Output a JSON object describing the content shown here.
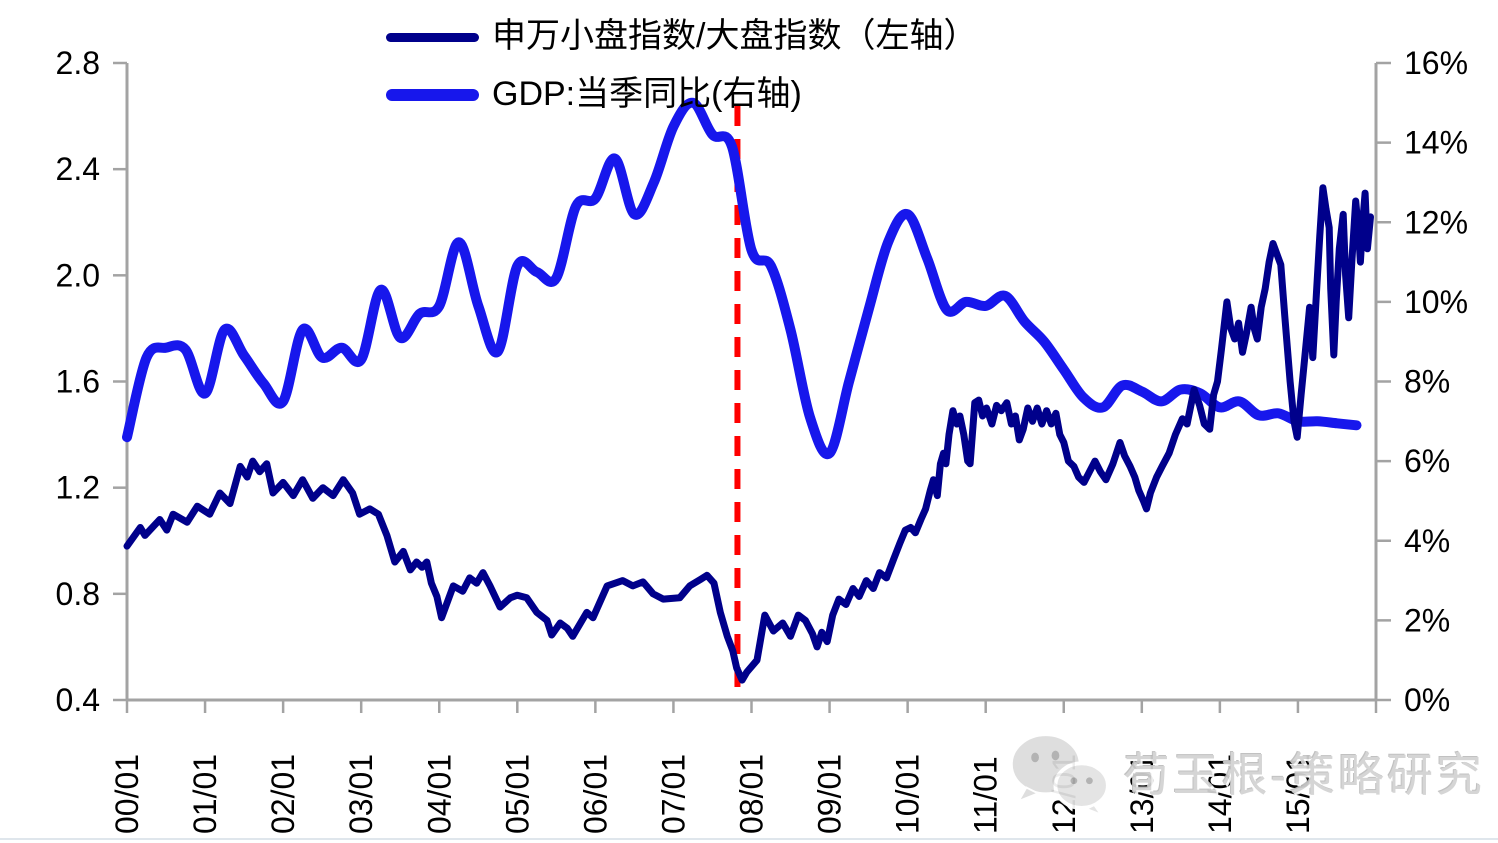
{
  "watermark": {
    "text": "荀玉根-策略研究"
  },
  "chart_data": {
    "type": "line",
    "title": "",
    "grid": false,
    "legend_position": "top-left-inside",
    "left_axis": {
      "min": 0.4,
      "max": 2.8,
      "tick_labels": [
        "2.8",
        "2.4",
        "2.0",
        "1.6",
        "1.2",
        "0.8",
        "0.4"
      ]
    },
    "right_axis": {
      "min": 0,
      "max": 16,
      "tick_labels": [
        "16%",
        "14%",
        "12%",
        "10%",
        "8%",
        "6%",
        "4%",
        "2%",
        "0%"
      ]
    },
    "x_axis": {
      "min_year": 2000,
      "max_year": 2016,
      "tick_labels": [
        "00/01",
        "01/01",
        "02/01",
        "03/01",
        "04/01",
        "05/01",
        "06/01",
        "07/01",
        "08/01",
        "09/01",
        "10/01",
        "11/01",
        "12/01",
        "13/01",
        "14/01",
        "15/01"
      ]
    },
    "annotation_vline": {
      "x_year": 2007.82,
      "color": "#FF0000",
      "dash": [
        20,
        13
      ],
      "width": 6
    },
    "colors": {
      "ratio_line": "#00008B",
      "gdp_line": "#1717EC",
      "axis": "#A3A3A3",
      "label": "#000000",
      "watermark": "#D2D2D2"
    },
    "series": [
      {
        "name": "申万小盘指数/大盘指数（左轴）",
        "axis": "left",
        "color": "#00008B",
        "width": 7,
        "smooth": false,
        "points": [
          [
            2000.0,
            0.98
          ],
          [
            2000.17,
            1.05
          ],
          [
            2000.23,
            1.02
          ],
          [
            2000.42,
            1.08
          ],
          [
            2000.51,
            1.04
          ],
          [
            2000.59,
            1.1
          ],
          [
            2000.77,
            1.07
          ],
          [
            2000.9,
            1.13
          ],
          [
            2001.06,
            1.1
          ],
          [
            2001.19,
            1.18
          ],
          [
            2001.32,
            1.14
          ],
          [
            2001.45,
            1.28
          ],
          [
            2001.54,
            1.24
          ],
          [
            2001.61,
            1.3
          ],
          [
            2001.7,
            1.26
          ],
          [
            2001.79,
            1.29
          ],
          [
            2001.87,
            1.18
          ],
          [
            2002.0,
            1.22
          ],
          [
            2002.13,
            1.17
          ],
          [
            2002.25,
            1.23
          ],
          [
            2002.38,
            1.16
          ],
          [
            2002.51,
            1.2
          ],
          [
            2002.64,
            1.17
          ],
          [
            2002.77,
            1.23
          ],
          [
            2002.89,
            1.18
          ],
          [
            2002.98,
            1.1
          ],
          [
            2003.11,
            1.12
          ],
          [
            2003.22,
            1.1
          ],
          [
            2003.33,
            1.02
          ],
          [
            2003.43,
            0.92
          ],
          [
            2003.54,
            0.96
          ],
          [
            2003.63,
            0.89
          ],
          [
            2003.71,
            0.92
          ],
          [
            2003.78,
            0.9
          ],
          [
            2003.84,
            0.92
          ],
          [
            2003.9,
            0.84
          ],
          [
            2003.97,
            0.79
          ],
          [
            2004.03,
            0.71
          ],
          [
            2004.18,
            0.83
          ],
          [
            2004.3,
            0.81
          ],
          [
            2004.39,
            0.86
          ],
          [
            2004.48,
            0.84
          ],
          [
            2004.56,
            0.88
          ],
          [
            2004.65,
            0.83
          ],
          [
            2004.78,
            0.75
          ],
          [
            2004.91,
            0.785
          ],
          [
            2005.0,
            0.795
          ],
          [
            2005.12,
            0.785
          ],
          [
            2005.25,
            0.73
          ],
          [
            2005.38,
            0.7
          ],
          [
            2005.44,
            0.645
          ],
          [
            2005.55,
            0.69
          ],
          [
            2005.64,
            0.67
          ],
          [
            2005.71,
            0.64
          ],
          [
            2005.89,
            0.73
          ],
          [
            2005.97,
            0.71
          ],
          [
            2006.15,
            0.83
          ],
          [
            2006.35,
            0.85
          ],
          [
            2006.48,
            0.83
          ],
          [
            2006.61,
            0.845
          ],
          [
            2006.74,
            0.8
          ],
          [
            2006.87,
            0.78
          ],
          [
            2007.08,
            0.785
          ],
          [
            2007.21,
            0.83
          ],
          [
            2007.35,
            0.855
          ],
          [
            2007.43,
            0.87
          ],
          [
            2007.52,
            0.84
          ],
          [
            2007.6,
            0.73
          ],
          [
            2007.69,
            0.64
          ],
          [
            2007.76,
            0.585
          ],
          [
            2007.81,
            0.52
          ],
          [
            2007.88,
            0.475
          ],
          [
            2007.94,
            0.505
          ],
          [
            2008.07,
            0.55
          ],
          [
            2008.17,
            0.72
          ],
          [
            2008.28,
            0.66
          ],
          [
            2008.4,
            0.69
          ],
          [
            2008.5,
            0.64
          ],
          [
            2008.6,
            0.72
          ],
          [
            2008.69,
            0.7
          ],
          [
            2008.78,
            0.65
          ],
          [
            2008.84,
            0.6
          ],
          [
            2008.9,
            0.655
          ],
          [
            2008.97,
            0.62
          ],
          [
            2009.04,
            0.72
          ],
          [
            2009.12,
            0.78
          ],
          [
            2009.21,
            0.76
          ],
          [
            2009.3,
            0.82
          ],
          [
            2009.38,
            0.79
          ],
          [
            2009.47,
            0.85
          ],
          [
            2009.56,
            0.82
          ],
          [
            2009.64,
            0.88
          ],
          [
            2009.73,
            0.86
          ],
          [
            2009.82,
            0.93
          ],
          [
            2009.9,
            0.99
          ],
          [
            2009.97,
            1.04
          ],
          [
            2010.04,
            1.05
          ],
          [
            2010.1,
            1.03
          ],
          [
            2010.17,
            1.08
          ],
          [
            2010.23,
            1.12
          ],
          [
            2010.29,
            1.19
          ],
          [
            2010.33,
            1.23
          ],
          [
            2010.38,
            1.17
          ],
          [
            2010.42,
            1.29
          ],
          [
            2010.46,
            1.33
          ],
          [
            2010.49,
            1.29
          ],
          [
            2010.53,
            1.4
          ],
          [
            2010.58,
            1.49
          ],
          [
            2010.63,
            1.44
          ],
          [
            2010.67,
            1.47
          ],
          [
            2010.72,
            1.4
          ],
          [
            2010.77,
            1.3
          ],
          [
            2010.8,
            1.29
          ],
          [
            2010.86,
            1.52
          ],
          [
            2010.91,
            1.53
          ],
          [
            2010.96,
            1.47
          ],
          [
            2011.01,
            1.5
          ],
          [
            2011.08,
            1.44
          ],
          [
            2011.14,
            1.51
          ],
          [
            2011.2,
            1.49
          ],
          [
            2011.27,
            1.52
          ],
          [
            2011.33,
            1.44
          ],
          [
            2011.38,
            1.47
          ],
          [
            2011.43,
            1.38
          ],
          [
            2011.48,
            1.42
          ],
          [
            2011.54,
            1.5
          ],
          [
            2011.6,
            1.45
          ],
          [
            2011.66,
            1.5
          ],
          [
            2011.72,
            1.44
          ],
          [
            2011.78,
            1.49
          ],
          [
            2011.84,
            1.44
          ],
          [
            2011.9,
            1.48
          ],
          [
            2011.95,
            1.4
          ],
          [
            2012.0,
            1.37
          ],
          [
            2012.06,
            1.3
          ],
          [
            2012.13,
            1.28
          ],
          [
            2012.19,
            1.24
          ],
          [
            2012.26,
            1.22
          ],
          [
            2012.33,
            1.26
          ],
          [
            2012.4,
            1.3
          ],
          [
            2012.47,
            1.26
          ],
          [
            2012.54,
            1.23
          ],
          [
            2012.63,
            1.29
          ],
          [
            2012.72,
            1.37
          ],
          [
            2012.78,
            1.32
          ],
          [
            2012.85,
            1.28
          ],
          [
            2012.91,
            1.24
          ],
          [
            2012.96,
            1.19
          ],
          [
            2013.02,
            1.15
          ],
          [
            2013.06,
            1.12
          ],
          [
            2013.11,
            1.18
          ],
          [
            2013.19,
            1.24
          ],
          [
            2013.26,
            1.28
          ],
          [
            2013.35,
            1.33
          ],
          [
            2013.43,
            1.4
          ],
          [
            2013.52,
            1.46
          ],
          [
            2013.58,
            1.44
          ],
          [
            2013.67,
            1.57
          ],
          [
            2013.74,
            1.51
          ],
          [
            2013.8,
            1.44
          ],
          [
            2013.87,
            1.42
          ],
          [
            2013.92,
            1.55
          ],
          [
            2013.97,
            1.6
          ],
          [
            2014.02,
            1.72
          ],
          [
            2014.09,
            1.9
          ],
          [
            2014.14,
            1.8
          ],
          [
            2014.19,
            1.76
          ],
          [
            2014.24,
            1.82
          ],
          [
            2014.29,
            1.71
          ],
          [
            2014.34,
            1.78
          ],
          [
            2014.4,
            1.88
          ],
          [
            2014.44,
            1.8
          ],
          [
            2014.48,
            1.76
          ],
          [
            2014.53,
            1.88
          ],
          [
            2014.58,
            1.95
          ],
          [
            2014.63,
            2.05
          ],
          [
            2014.68,
            2.12
          ],
          [
            2014.73,
            2.08
          ],
          [
            2014.78,
            2.04
          ],
          [
            2014.83,
            1.85
          ],
          [
            2014.9,
            1.6
          ],
          [
            2014.95,
            1.45
          ],
          [
            2014.99,
            1.39
          ],
          [
            2015.04,
            1.55
          ],
          [
            2015.09,
            1.7
          ],
          [
            2015.13,
            1.82
          ],
          [
            2015.15,
            1.88
          ],
          [
            2015.19,
            1.69
          ],
          [
            2015.24,
            1.95
          ],
          [
            2015.28,
            2.15
          ],
          [
            2015.32,
            2.33
          ],
          [
            2015.36,
            2.25
          ],
          [
            2015.4,
            2.18
          ],
          [
            2015.42,
            1.95
          ],
          [
            2015.46,
            1.7
          ],
          [
            2015.49,
            1.9
          ],
          [
            2015.53,
            2.1
          ],
          [
            2015.58,
            2.23
          ],
          [
            2015.61,
            2.0
          ],
          [
            2015.65,
            1.84
          ],
          [
            2015.69,
            2.05
          ],
          [
            2015.74,
            2.28
          ],
          [
            2015.78,
            2.15
          ],
          [
            2015.8,
            2.05
          ],
          [
            2015.83,
            2.2
          ],
          [
            2015.86,
            2.31
          ],
          [
            2015.89,
            2.1
          ],
          [
            2015.93,
            2.22
          ]
        ]
      },
      {
        "name": "GDP:当季同比(右轴)",
        "axis": "right",
        "color": "#1717EC",
        "width": 10,
        "smooth": true,
        "points": [
          [
            2000.0,
            6.6
          ],
          [
            2000.25,
            8.6
          ],
          [
            2000.5,
            8.85
          ],
          [
            2000.75,
            8.8
          ],
          [
            2001.0,
            7.7
          ],
          [
            2001.25,
            9.3
          ],
          [
            2001.5,
            8.65
          ],
          [
            2001.75,
            7.95
          ],
          [
            2002.0,
            7.5
          ],
          [
            2002.25,
            9.3
          ],
          [
            2002.5,
            8.6
          ],
          [
            2002.75,
            8.85
          ],
          [
            2003.0,
            8.55
          ],
          [
            2003.25,
            10.3
          ],
          [
            2003.5,
            9.1
          ],
          [
            2003.75,
            9.7
          ],
          [
            2004.0,
            9.9
          ],
          [
            2004.25,
            11.5
          ],
          [
            2004.5,
            9.9
          ],
          [
            2004.75,
            8.75
          ],
          [
            2005.0,
            10.9
          ],
          [
            2005.25,
            10.75
          ],
          [
            2005.5,
            10.6
          ],
          [
            2005.75,
            12.4
          ],
          [
            2006.0,
            12.6
          ],
          [
            2006.25,
            13.6
          ],
          [
            2006.5,
            12.2
          ],
          [
            2006.75,
            13.0
          ],
          [
            2007.0,
            14.4
          ],
          [
            2007.25,
            15.0
          ],
          [
            2007.5,
            14.2
          ],
          [
            2007.75,
            13.9
          ],
          [
            2008.0,
            11.3
          ],
          [
            2008.25,
            10.9
          ],
          [
            2008.5,
            9.3
          ],
          [
            2008.75,
            7.1
          ],
          [
            2009.0,
            6.2
          ],
          [
            2009.25,
            8.0
          ],
          [
            2009.5,
            9.8
          ],
          [
            2009.75,
            11.5
          ],
          [
            2010.0,
            12.2
          ],
          [
            2010.25,
            11.1
          ],
          [
            2010.5,
            9.8
          ],
          [
            2010.75,
            10.0
          ],
          [
            2011.0,
            9.9
          ],
          [
            2011.25,
            10.15
          ],
          [
            2011.5,
            9.5
          ],
          [
            2011.75,
            9.0
          ],
          [
            2012.0,
            8.3
          ],
          [
            2012.25,
            7.6
          ],
          [
            2012.5,
            7.35
          ],
          [
            2012.75,
            7.9
          ],
          [
            2013.0,
            7.75
          ],
          [
            2013.25,
            7.5
          ],
          [
            2013.5,
            7.8
          ],
          [
            2013.75,
            7.7
          ],
          [
            2014.0,
            7.35
          ],
          [
            2014.25,
            7.5
          ],
          [
            2014.5,
            7.15
          ],
          [
            2014.75,
            7.2
          ],
          [
            2015.0,
            7.0
          ],
          [
            2015.25,
            7.0
          ],
          [
            2015.5,
            6.95
          ],
          [
            2015.75,
            6.9
          ]
        ]
      }
    ]
  }
}
